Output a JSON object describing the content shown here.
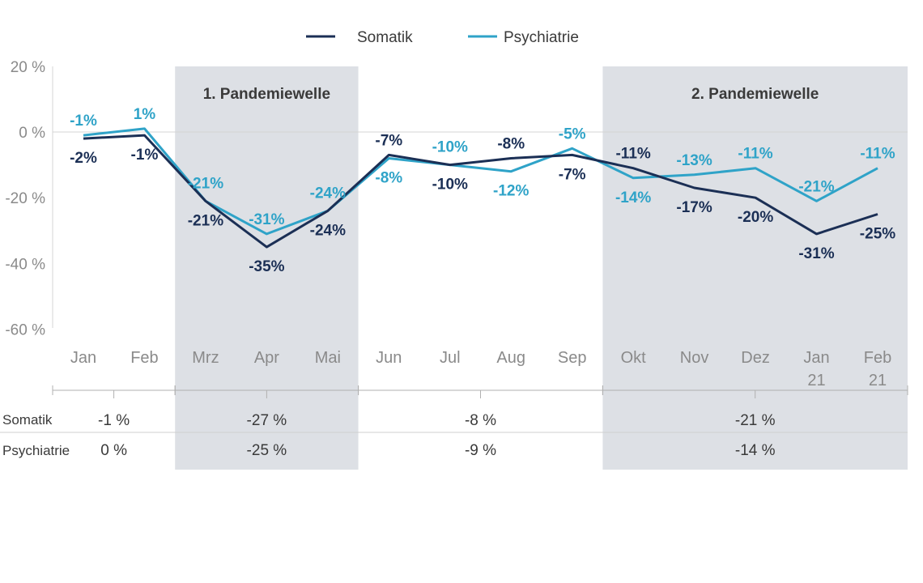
{
  "colors": {
    "somatik": "#1b2f55",
    "psychiatrie": "#2fa3c8",
    "band": "#dde0e5",
    "grid": "#d4d4d4"
  },
  "chart_data": {
    "type": "line",
    "categories": [
      "Jan",
      "Feb",
      "Mrz",
      "Apr",
      "Mai",
      "Jun",
      "Jul",
      "Aug",
      "Sep",
      "Okt",
      "Nov",
      "Dez",
      "Jan 21",
      "Feb 21"
    ],
    "category_lines": [
      [
        "Jan"
      ],
      [
        "Feb"
      ],
      [
        "Mrz"
      ],
      [
        "Apr"
      ],
      [
        "Mai"
      ],
      [
        "Jun"
      ],
      [
        "Jul"
      ],
      [
        "Aug"
      ],
      [
        "Sep"
      ],
      [
        "Okt"
      ],
      [
        "Nov"
      ],
      [
        "Dez"
      ],
      [
        "Jan",
        "21"
      ],
      [
        "Feb",
        "21"
      ]
    ],
    "series": [
      {
        "name": "Somatik",
        "values": [
          -2,
          -1,
          -21,
          -35,
          -24,
          -7,
          -10,
          -8,
          -7,
          -11,
          -17,
          -20,
          -31,
          -25
        ],
        "labels": [
          "-2%",
          "-1%",
          "-21%",
          "-35%",
          "-24%",
          "-7%",
          "-10%",
          "-8%",
          "-7%",
          "-11%",
          "-17%",
          "-20%",
          "-31%",
          "-25%"
        ]
      },
      {
        "name": "Psychiatrie",
        "values": [
          -1,
          1,
          -21,
          -31,
          -24,
          -8,
          -10,
          -12,
          -5,
          -14,
          -13,
          -11,
          -21,
          -11
        ],
        "labels": [
          "-1%",
          "1%",
          "-21%",
          "-31%",
          "-24%",
          "-8%",
          "-10%",
          "-12%",
          "-5%",
          "-14%",
          "-13%",
          "-11%",
          "-21%",
          "-11%"
        ]
      }
    ],
    "y_ticks": [
      20,
      0,
      -20,
      -40,
      -60
    ],
    "y_tick_labels": [
      "20 %",
      "0 %",
      "-20 %",
      "-40 %",
      "-60 %"
    ],
    "ylim": [
      -60,
      20
    ],
    "reference_line": 0,
    "bands": [
      {
        "label": "1. Pandemiewelle",
        "from": "Mrz",
        "to": "Mai"
      },
      {
        "label": "2. Pandemiewelle",
        "from": "Okt",
        "to": "Feb 21"
      }
    ],
    "legend": [
      "Somatik",
      "Psychiatrie"
    ]
  },
  "summary": {
    "row_labels": [
      "Somatik",
      "Psychiatrie"
    ],
    "groups": [
      {
        "from": "Jan",
        "to": "Feb",
        "somatik": "-1 %",
        "psychiatrie": "0 %"
      },
      {
        "from": "Mrz",
        "to": "Mai",
        "somatik": "-27 %",
        "psychiatrie": "-25 %"
      },
      {
        "from": "Jun",
        "to": "Sep",
        "somatik": "-8 %",
        "psychiatrie": "-9 %"
      },
      {
        "from": "Okt",
        "to": "Feb 21",
        "somatik": "-21 %",
        "psychiatrie": "-14 %"
      }
    ]
  }
}
